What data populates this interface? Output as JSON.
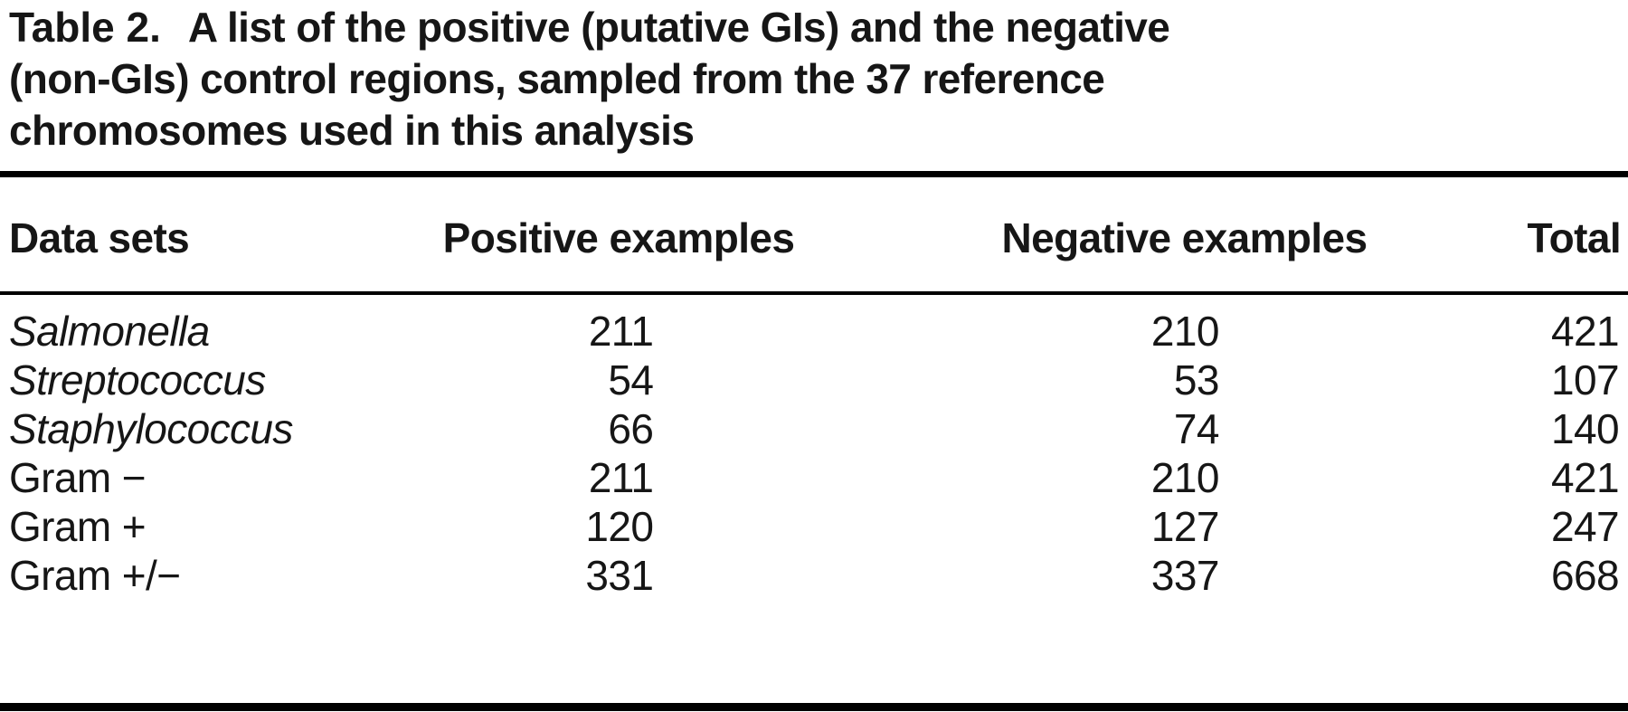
{
  "caption": {
    "label": "Table 2.",
    "line1": "A list of the positive (putative GIs) and the negative",
    "line2": "(non-GIs) control regions, sampled from the 37 reference",
    "line3": "chromosomes used in this analysis"
  },
  "table": {
    "columns": [
      "Data sets",
      "Positive examples",
      "Negative examples",
      "Total"
    ],
    "rows": [
      {
        "name": "Salmonella",
        "italic": true,
        "positive": "211",
        "negative": "210",
        "total": "421"
      },
      {
        "name": "Streptococcus",
        "italic": true,
        "positive": "54",
        "negative": "53",
        "total": "107"
      },
      {
        "name": "Staphylococcus",
        "italic": true,
        "positive": "66",
        "negative": "74",
        "total": "140"
      },
      {
        "name": "Gram −",
        "italic": false,
        "positive": "211",
        "negative": "210",
        "total": "421"
      },
      {
        "name": "Gram +",
        "italic": false,
        "positive": "120",
        "negative": "127",
        "total": "247"
      },
      {
        "name": "Gram +/−",
        "italic": false,
        "positive": "331",
        "negative": "337",
        "total": "668"
      }
    ]
  },
  "colors": {
    "text": "#161616",
    "rule": "#000000",
    "background": "#ffffff"
  }
}
